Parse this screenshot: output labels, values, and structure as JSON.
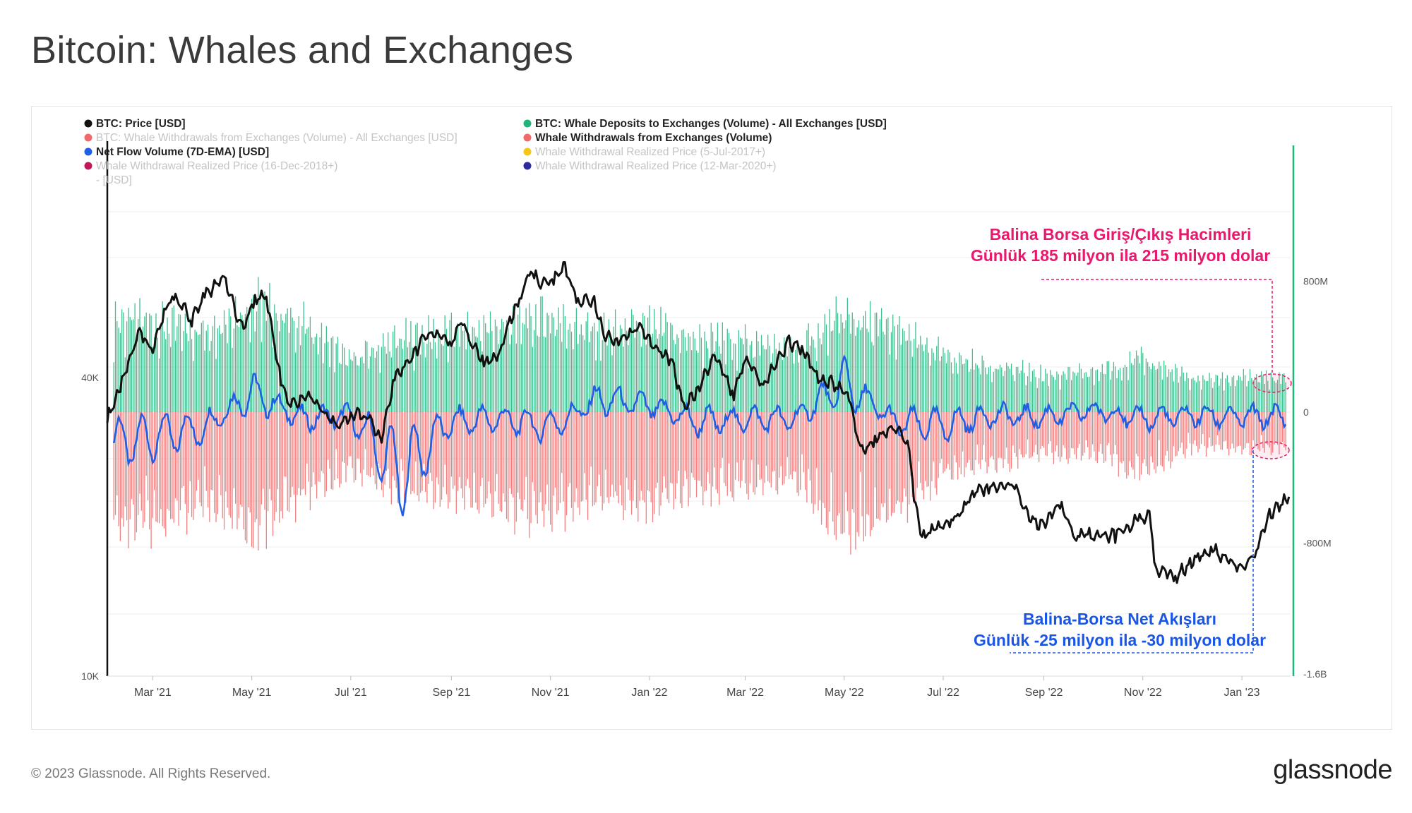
{
  "title": "Bitcoin: Whales and Exchanges",
  "footer": {
    "copyright": "© 2023 Glassnode. All Rights Reserved.",
    "logo": "glassnode"
  },
  "colors": {
    "price": "#111111",
    "deposits": "#1fb57a",
    "withdrawals": "#f06a6a",
    "netflow": "#1f5fe6",
    "pink": "#e8196c",
    "blue_annotation": "#1a56e6",
    "rp_2018": "#c2185b",
    "rp_2017": "#f5c518",
    "rp_2020": "#2b2b9c"
  },
  "legend": [
    {
      "label": "BTC: Price [USD]",
      "color": "#111111",
      "active": true
    },
    {
      "label": "BTC: Whale Deposits to Exchanges (Volume) - All Exchanges [USD]",
      "color": "#1fb57a",
      "active": true
    },
    {
      "label": "BTC: Whale Withdrawals from Exchanges (Volume) - All Exchanges [USD]",
      "color": "#f06a6a",
      "active": false
    },
    {
      "label": "Whale Withdrawals from Exchanges (Volume)",
      "color": "#f06a6a",
      "active": true
    },
    {
      "label": "Net Flow Volume (7D-EMA) [USD]",
      "color": "#1f5fe6",
      "active": true
    },
    {
      "label": "Whale Withdrawal Realized Price (5-Jul-2017+)",
      "color": "#f5c518",
      "active": false
    },
    {
      "label": "Whale Withdrawal Realized Price (16-Dec-2018+)",
      "label_cont": "- [USD]",
      "color": "#c2185b",
      "active": false
    },
    {
      "label": "Whale Withdrawal Realized Price (12-Mar-2020+)",
      "color": "#2b2b9c",
      "active": false
    }
  ],
  "annotations": {
    "pink_line1": "Balina Borsa Giriş/Çıkış Hacimleri",
    "pink_line2": "Günlük 185 milyon ila 215 milyon dolar",
    "blue_line1": "Balina-Borsa Net Akışları",
    "blue_line2": "Günlük -25 milyon ila -30 milyon dolar"
  },
  "chart_data": {
    "type": "line",
    "title": "Bitcoin: Whales and Exchanges",
    "x_ticks": [
      "Mar '21",
      "May '21",
      "Jul '21",
      "Sep '21",
      "Nov '21",
      "Jan '22",
      "Mar '22",
      "May '22",
      "Jul '22",
      "Sep '22",
      "Nov '22",
      "Jan '23"
    ],
    "x_range": [
      "2021-02-01",
      "2023-01-31"
    ],
    "left_axis": {
      "scale": "log",
      "ticks": [
        "10K",
        "40K"
      ],
      "tick_values": [
        10000,
        40000
      ],
      "range": [
        10000,
        120000
      ]
    },
    "right_axis": {
      "scale": "linear",
      "ticks": [
        "800M",
        "0",
        "-800M",
        "-1.6B"
      ],
      "tick_values": [
        800,
        0,
        -800,
        -1600
      ],
      "range_musd": [
        -1600,
        1600
      ]
    },
    "series": [
      {
        "name": "BTC: Price [USD]",
        "axis": "left",
        "dates": [
          "2021-02-01",
          "2021-02-10",
          "2021-02-21",
          "2021-02-28",
          "2021-03-13",
          "2021-03-25",
          "2021-04-02",
          "2021-04-14",
          "2021-04-25",
          "2021-05-03",
          "2021-05-10",
          "2021-05-19",
          "2021-05-25",
          "2021-06-05",
          "2021-06-22",
          "2021-07-01",
          "2021-07-10",
          "2021-07-20",
          "2021-07-28",
          "2021-08-08",
          "2021-08-14",
          "2021-08-23",
          "2021-09-01",
          "2021-09-07",
          "2021-09-14",
          "2021-09-21",
          "2021-09-30",
          "2021-10-06",
          "2021-10-13",
          "2021-10-20",
          "2021-10-26",
          "2021-11-03",
          "2021-11-09",
          "2021-11-18",
          "2021-11-28",
          "2021-12-04",
          "2021-12-13",
          "2021-12-25",
          "2022-01-05",
          "2022-01-15",
          "2022-01-22",
          "2022-01-31",
          "2022-02-10",
          "2022-02-22",
          "2022-03-01",
          "2022-03-12",
          "2022-03-28",
          "2022-04-05",
          "2022-04-15",
          "2022-04-26",
          "2022-05-05",
          "2022-05-09",
          "2022-05-12",
          "2022-05-20",
          "2022-06-01",
          "2022-06-10",
          "2022-06-13",
          "2022-06-18",
          "2022-06-28",
          "2022-07-10",
          "2022-07-20",
          "2022-07-29",
          "2022-08-14",
          "2022-08-20",
          "2022-08-30",
          "2022-09-12",
          "2022-09-20",
          "2022-10-01",
          "2022-10-15",
          "2022-10-29",
          "2022-11-05",
          "2022-11-09",
          "2022-11-21",
          "2022-12-01",
          "2022-12-14",
          "2022-12-30",
          "2023-01-07",
          "2023-01-13",
          "2023-01-18",
          "2023-01-30"
        ],
        "values": [
          33000,
          39000,
          50000,
          45500,
          59000,
          52500,
          58800,
          63500,
          50000,
          57500,
          58000,
          39000,
          35000,
          36800,
          31800,
          33500,
          33800,
          29800,
          40000,
          44000,
          47500,
          49700,
          47000,
          52000,
          47000,
          42800,
          43800,
          51500,
          57500,
          66000,
          61000,
          63000,
          67500,
          57000,
          57200,
          49000,
          47000,
          50800,
          46000,
          43000,
          35000,
          38000,
          44500,
          37000,
          44000,
          38700,
          47000,
          45500,
          40000,
          38800,
          36000,
          30000,
          28500,
          30000,
          31800,
          29200,
          22800,
          19000,
          20000,
          21000,
          23500,
          24000,
          24400,
          21500,
          20000,
          22400,
          19000,
          19400,
          19200,
          20700,
          21200,
          16500,
          15800,
          17000,
          18000,
          16600,
          17000,
          19000,
          21200,
          23000
        ]
      },
      {
        "name": "Whale Deposits to Exchanges (Volume)",
        "axis": "right",
        "unit": "million USD / day (approx.)",
        "dates": [
          "2021-02",
          "2021-03",
          "2021-04",
          "2021-05",
          "2021-06",
          "2021-07",
          "2021-08",
          "2021-09",
          "2021-10",
          "2021-11",
          "2021-12",
          "2022-01",
          "2022-02",
          "2022-03",
          "2022-04",
          "2022-05",
          "2022-06",
          "2022-07",
          "2022-08",
          "2022-09",
          "2022-10",
          "2022-11",
          "2022-12",
          "2023-01"
        ],
        "values": [
          560,
          520,
          480,
          640,
          520,
          300,
          430,
          460,
          500,
          560,
          460,
          500,
          420,
          420,
          360,
          560,
          480,
          330,
          270,
          220,
          230,
          310,
          190,
          200
        ]
      },
      {
        "name": "Whale Withdrawals from Exchanges (Volume)",
        "axis": "right",
        "unit": "million USD / day (approx.)",
        "dates": [
          "2021-02",
          "2021-03",
          "2021-04",
          "2021-05",
          "2021-06",
          "2021-07",
          "2021-08",
          "2021-09",
          "2021-10",
          "2021-11",
          "2021-12",
          "2022-01",
          "2022-02",
          "2022-03",
          "2022-04",
          "2022-05",
          "2022-06",
          "2022-07",
          "2022-08",
          "2022-09",
          "2022-10",
          "2022-11",
          "2022-12",
          "2023-01"
        ],
        "values": [
          -620,
          -640,
          -560,
          -700,
          -480,
          -320,
          -450,
          -470,
          -540,
          -600,
          -480,
          -520,
          -440,
          -430,
          -380,
          -700,
          -560,
          -360,
          -300,
          -240,
          -240,
          -350,
          -200,
          -210
        ]
      },
      {
        "name": "Net Flow Volume (7D-EMA) [USD]",
        "axis": "right",
        "unit": "million USD / day (approx.)",
        "dates": [
          "2021-02",
          "2021-03",
          "2021-04",
          "2021-05",
          "2021-06",
          "2021-07",
          "2021-08",
          "2021-09",
          "2021-10",
          "2021-11",
          "2021-12",
          "2022-01",
          "2022-02",
          "2022-03",
          "2022-04",
          "2022-05",
          "2022-06",
          "2022-07",
          "2022-08",
          "2022-09",
          "2022-10",
          "2022-11",
          "2022-12",
          "2023-01"
        ],
        "values": [
          -200,
          -150,
          -100,
          120,
          -40,
          -20,
          -380,
          -60,
          -40,
          -90,
          80,
          40,
          -60,
          -40,
          -40,
          180,
          -60,
          -80,
          -20,
          -30,
          10,
          -40,
          -20,
          -28
        ]
      }
    ]
  }
}
